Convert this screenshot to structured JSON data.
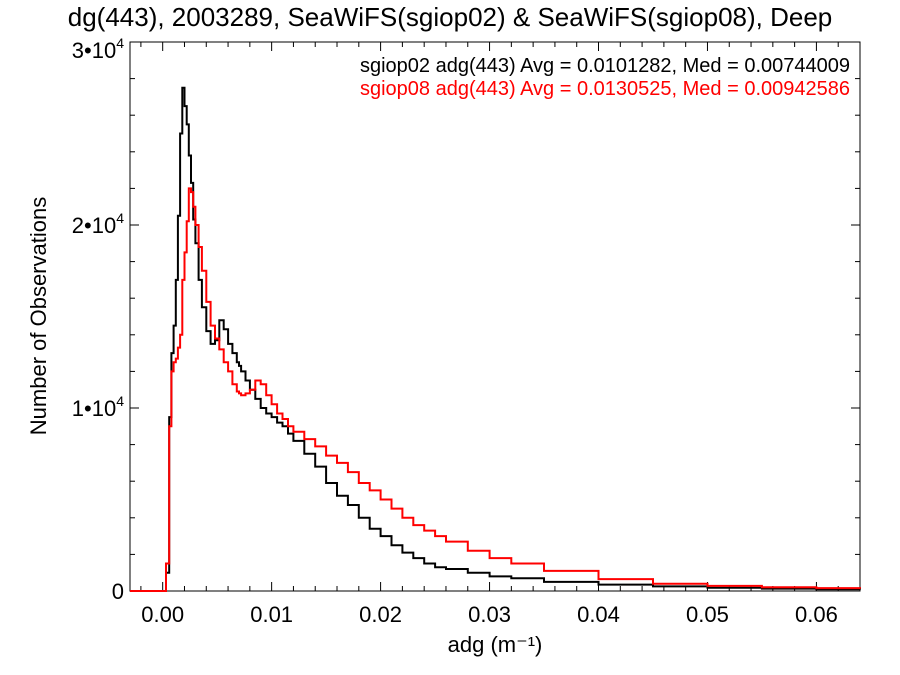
{
  "chart_data": {
    "type": "line",
    "title": "dg(443), 2003289, SeaWiFS(sgiop02) & SeaWiFS(sgiop08), Deep",
    "xlabel": "adg (m⁻¹)",
    "ylabel": "Number of Observations",
    "xlim": [
      -0.003,
      0.064
    ],
    "ylim": [
      0,
      30000
    ],
    "x_ticks": [
      {
        "value": 0.0,
        "label": "0.00"
      },
      {
        "value": 0.01,
        "label": "0.01"
      },
      {
        "value": 0.02,
        "label": "0.02"
      },
      {
        "value": 0.03,
        "label": "0.03"
      },
      {
        "value": 0.04,
        "label": "0.04"
      },
      {
        "value": 0.05,
        "label": "0.05"
      },
      {
        "value": 0.06,
        "label": "0.06"
      }
    ],
    "y_ticks": [
      {
        "value": 0,
        "mantissa": "0",
        "exponent": ""
      },
      {
        "value": 10000,
        "mantissa": "1•10",
        "exponent": "4"
      },
      {
        "value": 20000,
        "mantissa": "2•10",
        "exponent": "4"
      },
      {
        "value": 30000,
        "mantissa": "3•10",
        "exponent": "4"
      }
    ],
    "grid": false,
    "legend_position": "top-right",
    "series": [
      {
        "name": "sgiop02 adg(443) Avg = 0.0101282, Med = 0.00744009",
        "color": "#000000",
        "x": [
          -0.003,
          -0.0005,
          0.0,
          0.0003,
          0.0006,
          0.0008,
          0.001,
          0.0012,
          0.0014,
          0.0016,
          0.0018,
          0.002,
          0.0022,
          0.0024,
          0.0026,
          0.0028,
          0.003,
          0.0033,
          0.0036,
          0.004,
          0.0044,
          0.0048,
          0.0052,
          0.0056,
          0.006,
          0.0064,
          0.0068,
          0.007,
          0.0072,
          0.0076,
          0.008,
          0.0085,
          0.009,
          0.0095,
          0.01,
          0.0105,
          0.011,
          0.0115,
          0.012,
          0.013,
          0.014,
          0.015,
          0.016,
          0.017,
          0.018,
          0.019,
          0.02,
          0.021,
          0.022,
          0.023,
          0.024,
          0.025,
          0.026,
          0.028,
          0.03,
          0.032,
          0.035,
          0.04,
          0.045,
          0.05,
          0.055,
          0.06,
          0.064
        ],
        "values": [
          0,
          0,
          0,
          1000,
          9500,
          13000,
          14500,
          17000,
          20500,
          25000,
          27500,
          26500,
          25500,
          23800,
          22300,
          20300,
          19000,
          17000,
          15500,
          14200,
          13500,
          13700,
          14800,
          14300,
          13500,
          13000,
          12500,
          12300,
          12000,
          11500,
          11000,
          10500,
          10000,
          9700,
          9500,
          9200,
          9000,
          8600,
          8200,
          7500,
          6800,
          5900,
          5200,
          4700,
          4000,
          3400,
          3000,
          2500,
          2100,
          1800,
          1500,
          1300,
          1200,
          1000,
          800,
          700,
          500,
          350,
          250,
          180,
          130,
          100,
          80
        ]
      },
      {
        "name": "sgiop08 adg(443) Avg = 0.0130525, Med = 0.00942586",
        "color": "#ff0000",
        "x": [
          -0.003,
          -0.0005,
          0.0,
          0.0003,
          0.0006,
          0.0008,
          0.001,
          0.0012,
          0.0014,
          0.0016,
          0.0018,
          0.002,
          0.0022,
          0.0024,
          0.0026,
          0.0028,
          0.003,
          0.0033,
          0.0036,
          0.004,
          0.0044,
          0.0048,
          0.0052,
          0.0056,
          0.006,
          0.0064,
          0.0068,
          0.007,
          0.0072,
          0.0076,
          0.008,
          0.0085,
          0.009,
          0.0095,
          0.01,
          0.0105,
          0.011,
          0.0115,
          0.012,
          0.013,
          0.014,
          0.015,
          0.016,
          0.017,
          0.018,
          0.019,
          0.02,
          0.021,
          0.022,
          0.023,
          0.024,
          0.025,
          0.026,
          0.028,
          0.03,
          0.032,
          0.035,
          0.04,
          0.045,
          0.05,
          0.055,
          0.06,
          0.064
        ],
        "values": [
          0,
          0,
          0,
          1500,
          9000,
          12000,
          12500,
          12700,
          13300,
          14000,
          17000,
          18500,
          20200,
          22000,
          21800,
          21000,
          20000,
          18800,
          17500,
          15800,
          14500,
          13800,
          13200,
          12500,
          12000,
          11300,
          10900,
          10800,
          10700,
          10800,
          11000,
          11500,
          11300,
          10700,
          10200,
          9700,
          9400,
          9000,
          8700,
          8300,
          7900,
          7400,
          7000,
          6500,
          5900,
          5500,
          5000,
          4500,
          4000,
          3600,
          3300,
          3000,
          2700,
          2200,
          1800,
          1500,
          1100,
          650,
          400,
          280,
          200,
          160,
          120
        ]
      }
    ]
  }
}
